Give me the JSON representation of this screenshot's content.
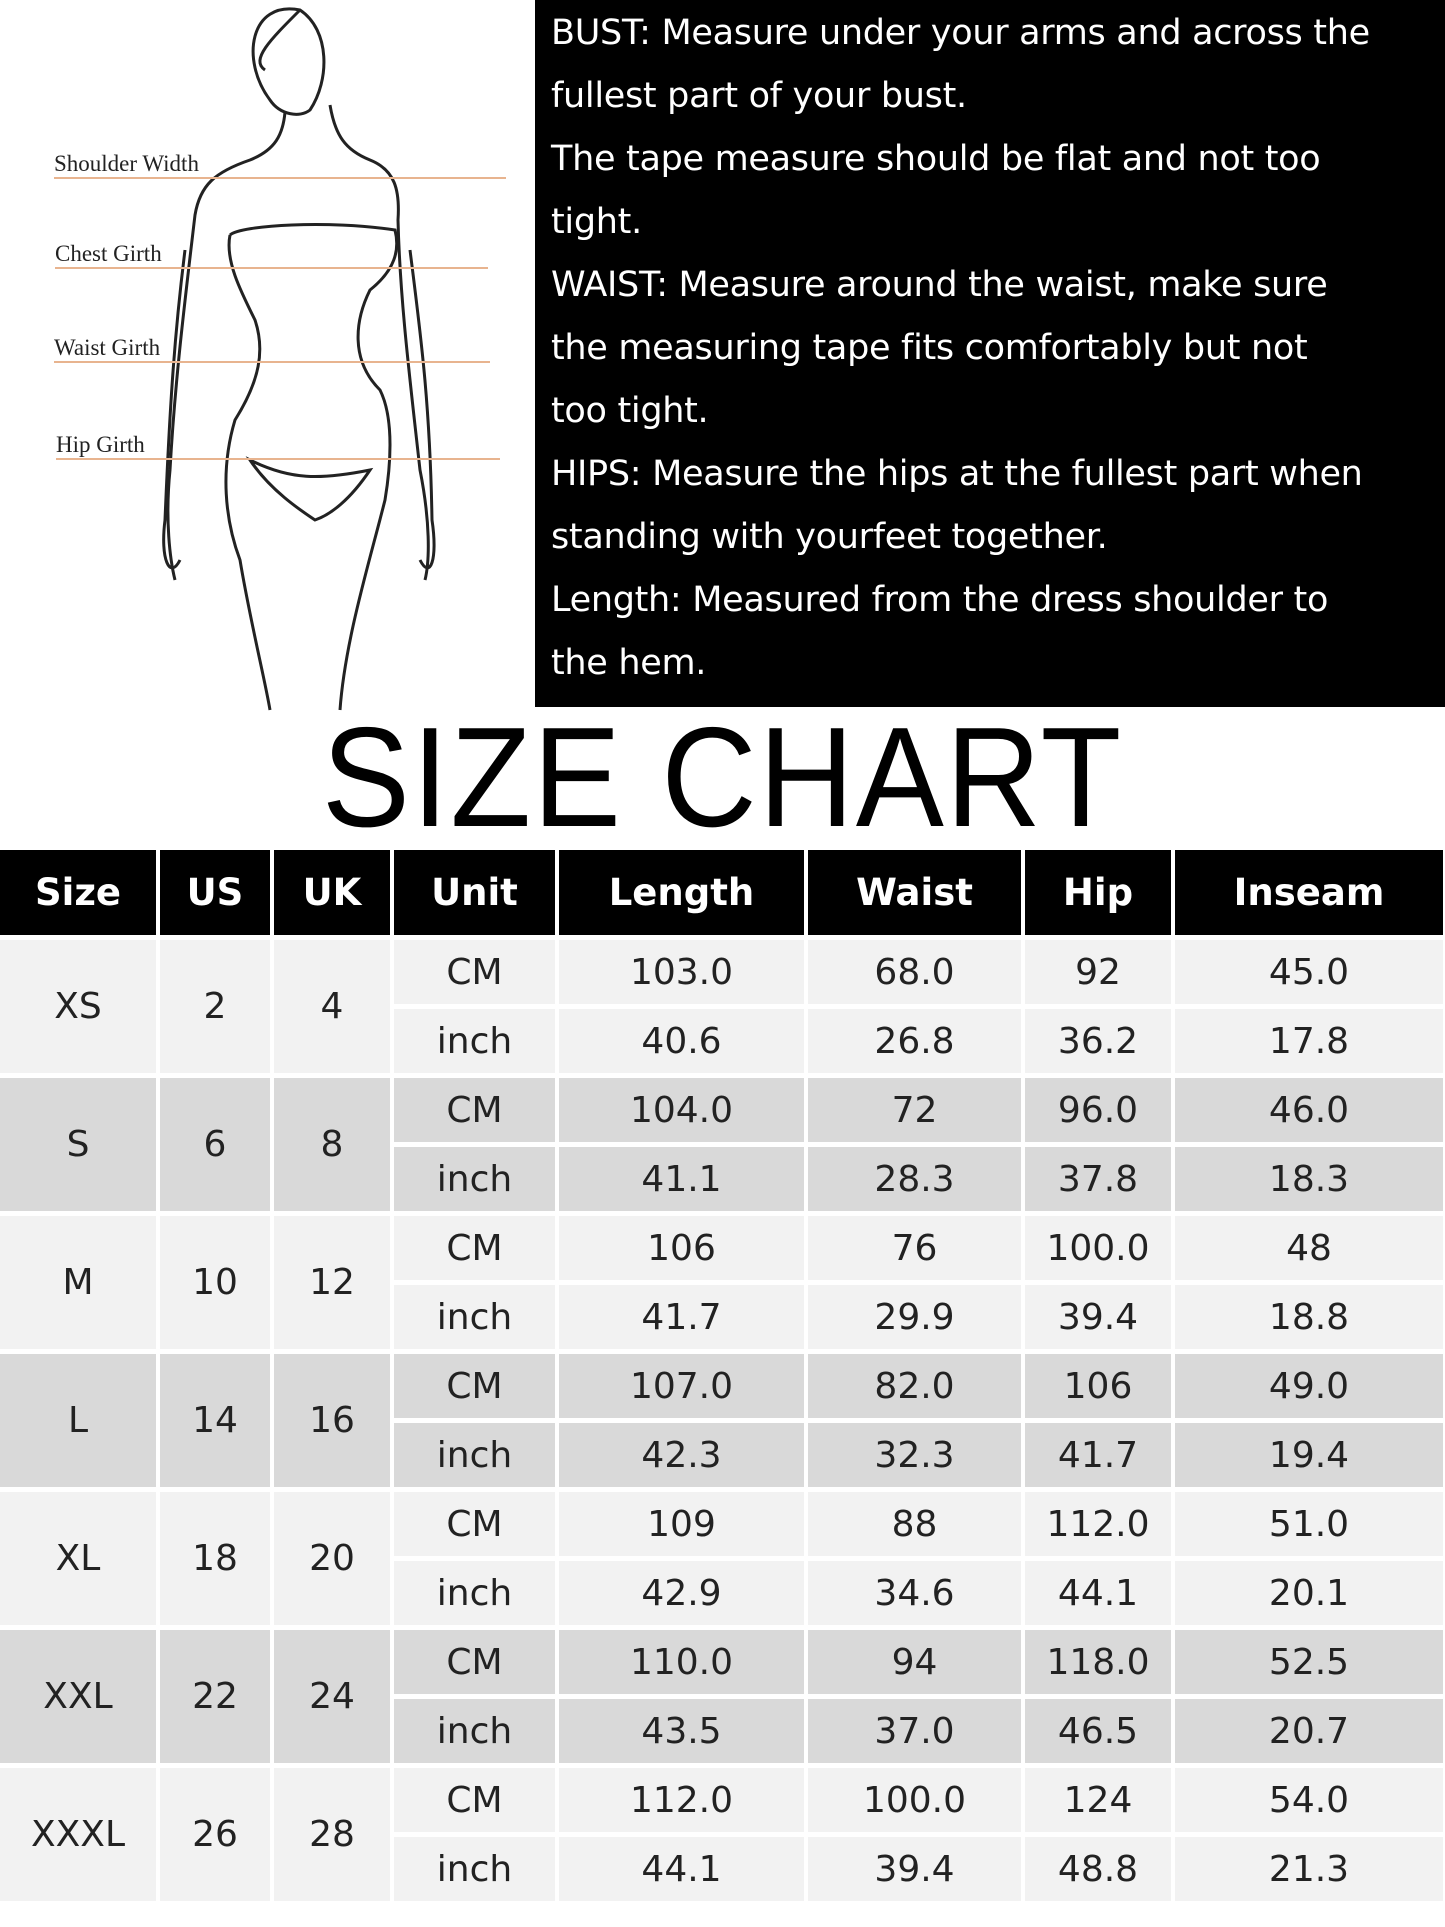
{
  "figure": {
    "labels": [
      "Shoulder Width",
      "Chest Girth",
      "Waist Girth",
      "Hip Girth"
    ],
    "line_color": "#e8b48f"
  },
  "instructions": [
    "BUST: Measure under your arms and across the",
    "fullest part of your bust.",
    "The tape measure should be flat and not too",
    "tight.",
    "WAIST: Measure around the waist, make sure",
    "the measuring tape fits comfortably but not",
    "too tight.",
    "HIPS: Measure the hips at the fullest part when",
    "standing with yourfeet together.",
    "Length: Measured from the dress shoulder to",
    "the hem."
  ],
  "title": "SIZE CHART",
  "table": {
    "headers": [
      "Size",
      "US",
      "UK",
      "Unit",
      "Length",
      "Waist",
      "Hip",
      "Inseam"
    ],
    "rows": [
      {
        "size": "XS",
        "us": "2",
        "uk": "4",
        "cm": [
          "103.0",
          "68.0",
          "92",
          "45.0"
        ],
        "inch": [
          "40.6",
          "26.8",
          "36.2",
          "17.8"
        ]
      },
      {
        "size": "S",
        "us": "6",
        "uk": "8",
        "cm": [
          "104.0",
          "72",
          "96.0",
          "46.0"
        ],
        "inch": [
          "41.1",
          "28.3",
          "37.8",
          "18.3"
        ]
      },
      {
        "size": "M",
        "us": "10",
        "uk": "12",
        "cm": [
          "106",
          "76",
          "100.0",
          "48"
        ],
        "inch": [
          "41.7",
          "29.9",
          "39.4",
          "18.8"
        ]
      },
      {
        "size": "L",
        "us": "14",
        "uk": "16",
        "cm": [
          "107.0",
          "82.0",
          "106",
          "49.0"
        ],
        "inch": [
          "42.3",
          "32.3",
          "41.7",
          "19.4"
        ]
      },
      {
        "size": "XL",
        "us": "18",
        "uk": "20",
        "cm": [
          "109",
          "88",
          "112.0",
          "51.0"
        ],
        "inch": [
          "42.9",
          "34.6",
          "44.1",
          "20.1"
        ]
      },
      {
        "size": "XXL",
        "us": "22",
        "uk": "24",
        "cm": [
          "110.0",
          "94",
          "118.0",
          "52.5"
        ],
        "inch": [
          "43.5",
          "37.0",
          "46.5",
          "20.7"
        ]
      },
      {
        "size": "XXXL",
        "us": "26",
        "uk": "28",
        "cm": [
          "112.0",
          "100.0",
          "124",
          "54.0"
        ],
        "inch": [
          "44.1",
          "39.4",
          "48.8",
          "21.3"
        ]
      }
    ],
    "unit_cm": "CM",
    "unit_inch": "inch",
    "colors": {
      "header": "#000000",
      "row_light": "#f2f2f2",
      "row_dark": "#d9d9d9"
    }
  }
}
